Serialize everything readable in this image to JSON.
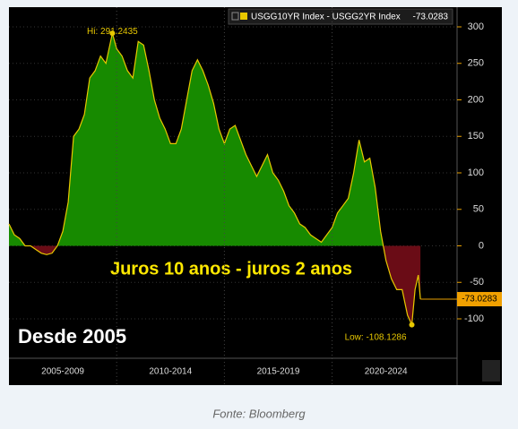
{
  "chart_data": {
    "type": "area",
    "title": "Juros 10 anos - juros 2 anos",
    "subtitle": "Desde 2005",
    "source": "Fonte: Bloomberg",
    "hi_label": "Hi: 291.2435",
    "low_label": "Low: -108.1286",
    "series": [
      {
        "name": "USGG10YR Index - USGG2YR Index",
        "color": "#e8c800",
        "positive_color": "#178a00",
        "negative_color": "#6a0c16",
        "x": [
          2005.0,
          2005.25,
          2005.5,
          2005.75,
          2006.0,
          2006.25,
          2006.5,
          2006.75,
          2007.0,
          2007.25,
          2007.5,
          2007.75,
          2008.0,
          2008.25,
          2008.5,
          2008.75,
          2009.0,
          2009.25,
          2009.5,
          2009.8,
          2010.0,
          2010.25,
          2010.5,
          2010.75,
          2011.0,
          2011.25,
          2011.5,
          2011.75,
          2012.0,
          2012.25,
          2012.5,
          2012.75,
          2013.0,
          2013.25,
          2013.5,
          2013.75,
          2014.0,
          2014.25,
          2014.5,
          2014.75,
          2015.0,
          2015.25,
          2015.5,
          2015.75,
          2016.0,
          2016.25,
          2016.5,
          2016.75,
          2017.0,
          2017.25,
          2017.5,
          2017.75,
          2018.0,
          2018.25,
          2018.5,
          2018.75,
          2019.0,
          2019.25,
          2019.5,
          2019.75,
          2020.0,
          2020.25,
          2020.5,
          2020.75,
          2021.0,
          2021.25,
          2021.5,
          2021.75,
          2022.0,
          2022.25,
          2022.5,
          2022.75,
          2023.0,
          2023.25,
          2023.5,
          2023.7,
          2023.85,
          2024.0,
          2024.1
        ],
        "values": [
          30,
          15,
          10,
          0,
          0,
          -5,
          -10,
          -12,
          -10,
          0,
          20,
          60,
          150,
          160,
          180,
          230,
          240,
          260,
          250,
          291.2435,
          270,
          260,
          240,
          230,
          280,
          275,
          240,
          200,
          175,
          160,
          140,
          140,
          160,
          200,
          240,
          255,
          240,
          220,
          195,
          160,
          140,
          160,
          165,
          145,
          125,
          110,
          95,
          110,
          125,
          100,
          90,
          75,
          55,
          45,
          30,
          25,
          15,
          10,
          5,
          15,
          25,
          45,
          55,
          65,
          100,
          145,
          115,
          120,
          80,
          20,
          -20,
          -45,
          -60,
          -60,
          -95,
          -108.1286,
          -60,
          -40,
          -73.0283
        ]
      }
    ],
    "xlim": [
      2005,
      2025.8
    ],
    "xticks": [
      {
        "value": 2007.5,
        "label": "2005-2009"
      },
      {
        "value": 2012.5,
        "label": "2010-2014"
      },
      {
        "value": 2017.5,
        "label": "2015-2019"
      },
      {
        "value": 2022.5,
        "label": "2020-2024"
      }
    ],
    "ylim": [
      -154,
      327
    ],
    "yticks": [
      -100,
      -50,
      0,
      50,
      100,
      150,
      200,
      250,
      300
    ],
    "grid": true
  }
}
